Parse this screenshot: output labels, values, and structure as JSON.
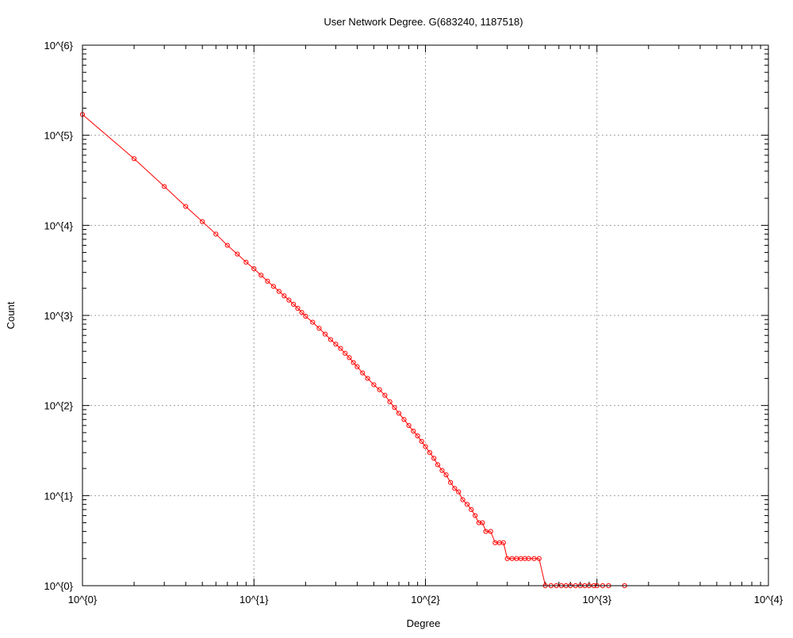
{
  "chart_data": {
    "type": "line",
    "title": "User Network Degree. G(683240, 1187518)",
    "xlabel": "Degree",
    "ylabel": "Count",
    "xscale": "log",
    "yscale": "log",
    "xlim": [
      1,
      10000
    ],
    "ylim": [
      1,
      1000000
    ],
    "grid": true,
    "line_color": "#ff0000",
    "marker": "circle-open",
    "xticks": [
      {
        "value": 1,
        "label": "10^{0}"
      },
      {
        "value": 10,
        "label": "10^{1}"
      },
      {
        "value": 100,
        "label": "10^{2}"
      },
      {
        "value": 1000,
        "label": "10^{3}"
      },
      {
        "value": 10000,
        "label": "10^{4}"
      }
    ],
    "yticks": [
      {
        "value": 1,
        "label": "10^{0}"
      },
      {
        "value": 10,
        "label": "10^{1}"
      },
      {
        "value": 100,
        "label": "10^{2}"
      },
      {
        "value": 1000,
        "label": "10^{3}"
      },
      {
        "value": 10000,
        "label": "10^{4}"
      },
      {
        "value": 100000,
        "label": "10^{5}"
      },
      {
        "value": 1000000,
        "label": "10^{6}"
      }
    ],
    "series": [
      {
        "x": [
          1,
          2,
          3,
          4,
          5,
          6,
          7,
          8,
          9,
          10,
          11,
          12,
          13,
          14,
          15,
          16,
          17,
          18,
          19,
          20,
          22,
          24,
          26,
          28,
          30,
          32,
          34,
          36,
          38,
          40,
          43,
          46,
          50,
          54,
          58,
          62,
          66,
          70,
          75,
          80,
          85,
          90,
          95,
          100,
          106,
          112,
          118,
          125,
          132,
          140,
          148,
          156,
          165,
          175,
          185,
          195,
          205,
          215,
          225,
          240,
          255,
          270,
          285,
          300,
          320,
          340,
          360,
          380,
          400,
          430,
          460,
          500,
          540,
          580,
          620,
          660,
          700,
          750,
          800,
          850,
          900,
          960,
          1000,
          1080,
          1170,
          1450
        ],
        "y": [
          170000,
          55000,
          27000,
          16200,
          11000,
          8000,
          6000,
          4800,
          3900,
          3300,
          2800,
          2400,
          2100,
          1850,
          1650,
          1480,
          1330,
          1200,
          1080,
          980,
          840,
          720,
          620,
          540,
          480,
          430,
          380,
          340,
          300,
          270,
          230,
          200,
          170,
          150,
          130,
          110,
          95,
          82,
          70,
          60,
          52,
          46,
          40,
          35,
          30,
          26,
          22,
          19,
          17,
          14,
          12,
          11,
          9,
          8,
          7,
          6,
          5,
          5,
          4,
          4,
          3,
          3,
          3,
          2,
          2,
          2,
          2,
          2,
          2,
          2,
          2,
          1,
          1,
          1,
          1,
          1,
          1,
          1,
          1,
          1,
          1,
          1,
          1,
          1,
          1,
          1
        ]
      }
    ]
  }
}
